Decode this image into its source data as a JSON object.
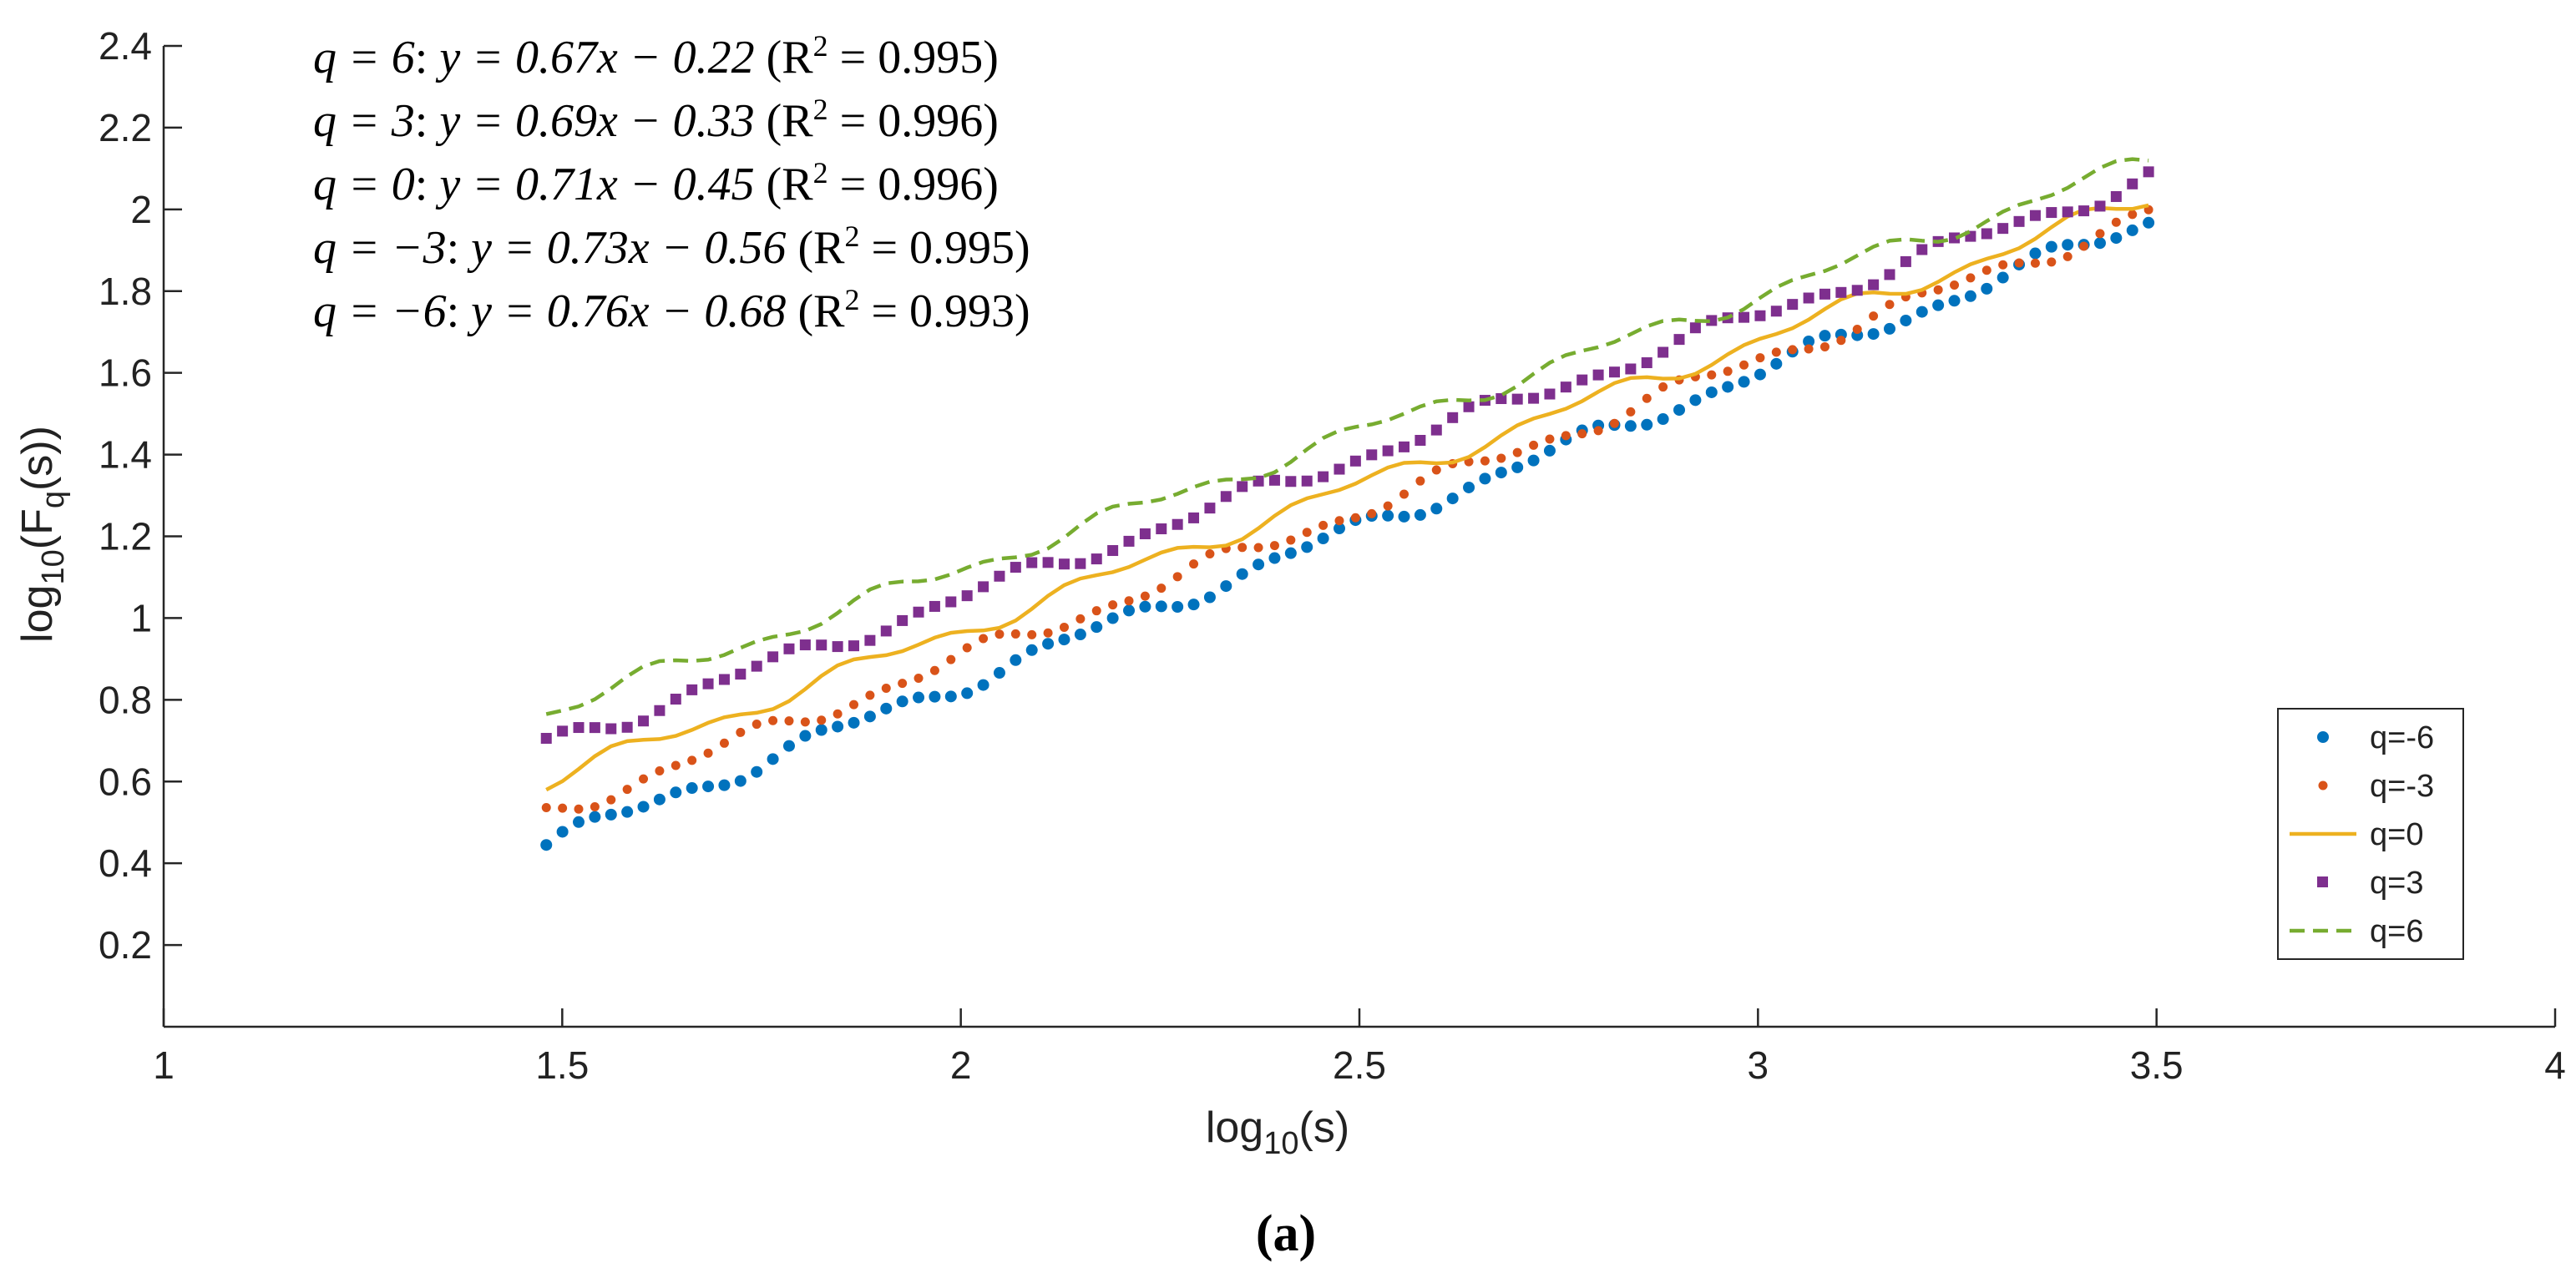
{
  "chart_data": {
    "type": "scatter",
    "title": "",
    "xlabel": "log10(s)",
    "ylabel": "log10(Fq(s))",
    "xlim": [
      1,
      4
    ],
    "ylim": [
      0,
      2.4
    ],
    "x_ticks": [
      "1",
      "1.5",
      "2",
      "2.5",
      "3",
      "3.5",
      "4"
    ],
    "y_ticks": [
      "0.2",
      "0.4",
      "0.6",
      "0.8",
      "1",
      "1.2",
      "1.4",
      "1.6",
      "1.8",
      "2",
      "2.2",
      "2.4"
    ],
    "x_tick_values": [
      1,
      1.5,
      2,
      2.5,
      3,
      3.5,
      4
    ],
    "y_tick_values": [
      0.2,
      0.4,
      0.6,
      0.8,
      1,
      1.2,
      1.4,
      1.6,
      1.8,
      2,
      2.2,
      2.4
    ],
    "legend_position": "bottom-right",
    "x_range": [
      1.48,
      3.49
    ],
    "point_count": 100,
    "series": [
      {
        "name": "q=-6",
        "marker": "circle",
        "color": "#0072BD",
        "slope": 0.76,
        "intercept": -0.68
      },
      {
        "name": "q=-3",
        "marker": "dot",
        "color": "#D95319",
        "slope": 0.73,
        "intercept": -0.56
      },
      {
        "name": "q=0",
        "marker": "line",
        "color": "#EDB120",
        "slope": 0.71,
        "intercept": -0.45
      },
      {
        "name": "q=3",
        "marker": "square",
        "color": "#7E2F8E",
        "slope": 0.69,
        "intercept": -0.33
      },
      {
        "name": "q=6",
        "marker": "dashed",
        "color": "#77AC30",
        "slope": 0.67,
        "intercept": -0.22
      }
    ],
    "annotations": {
      "equations": [
        {
          "q": "q = 6",
          "fit": "y = 0.67x − 0.22",
          "r_open": "(R",
          "r_sup": "2",
          "r_close": " = 0.995)"
        },
        {
          "q": "q = 3",
          "fit": "y = 0.69x − 0.33",
          "r_open": "(R",
          "r_sup": "2",
          "r_close": " = 0.996)"
        },
        {
          "q": "q = 0",
          "fit": "y = 0.71x − 0.45",
          "r_open": "(R",
          "r_sup": "2",
          "r_close": " = 0.996)"
        },
        {
          "q": "q = −3",
          "fit": "y = 0.73x − 0.56",
          "r_open": "(R",
          "r_sup": "2",
          "r_close": " = 0.995)"
        },
        {
          "q": "q = −6",
          "fit": "y = 0.76x − 0.68",
          "r_open": "(R",
          "r_sup": "2",
          "r_close": " = 0.993)"
        }
      ]
    },
    "caption": "(a)"
  },
  "labels": {
    "ylabel_main": "log",
    "ylabel_sub": "10",
    "ylabel_rest_open": "(F",
    "ylabel_sub_q": "q",
    "ylabel_rest_close": "(s))",
    "xlabel_main": "log",
    "xlabel_sub": "10",
    "xlabel_rest": "(s)"
  }
}
